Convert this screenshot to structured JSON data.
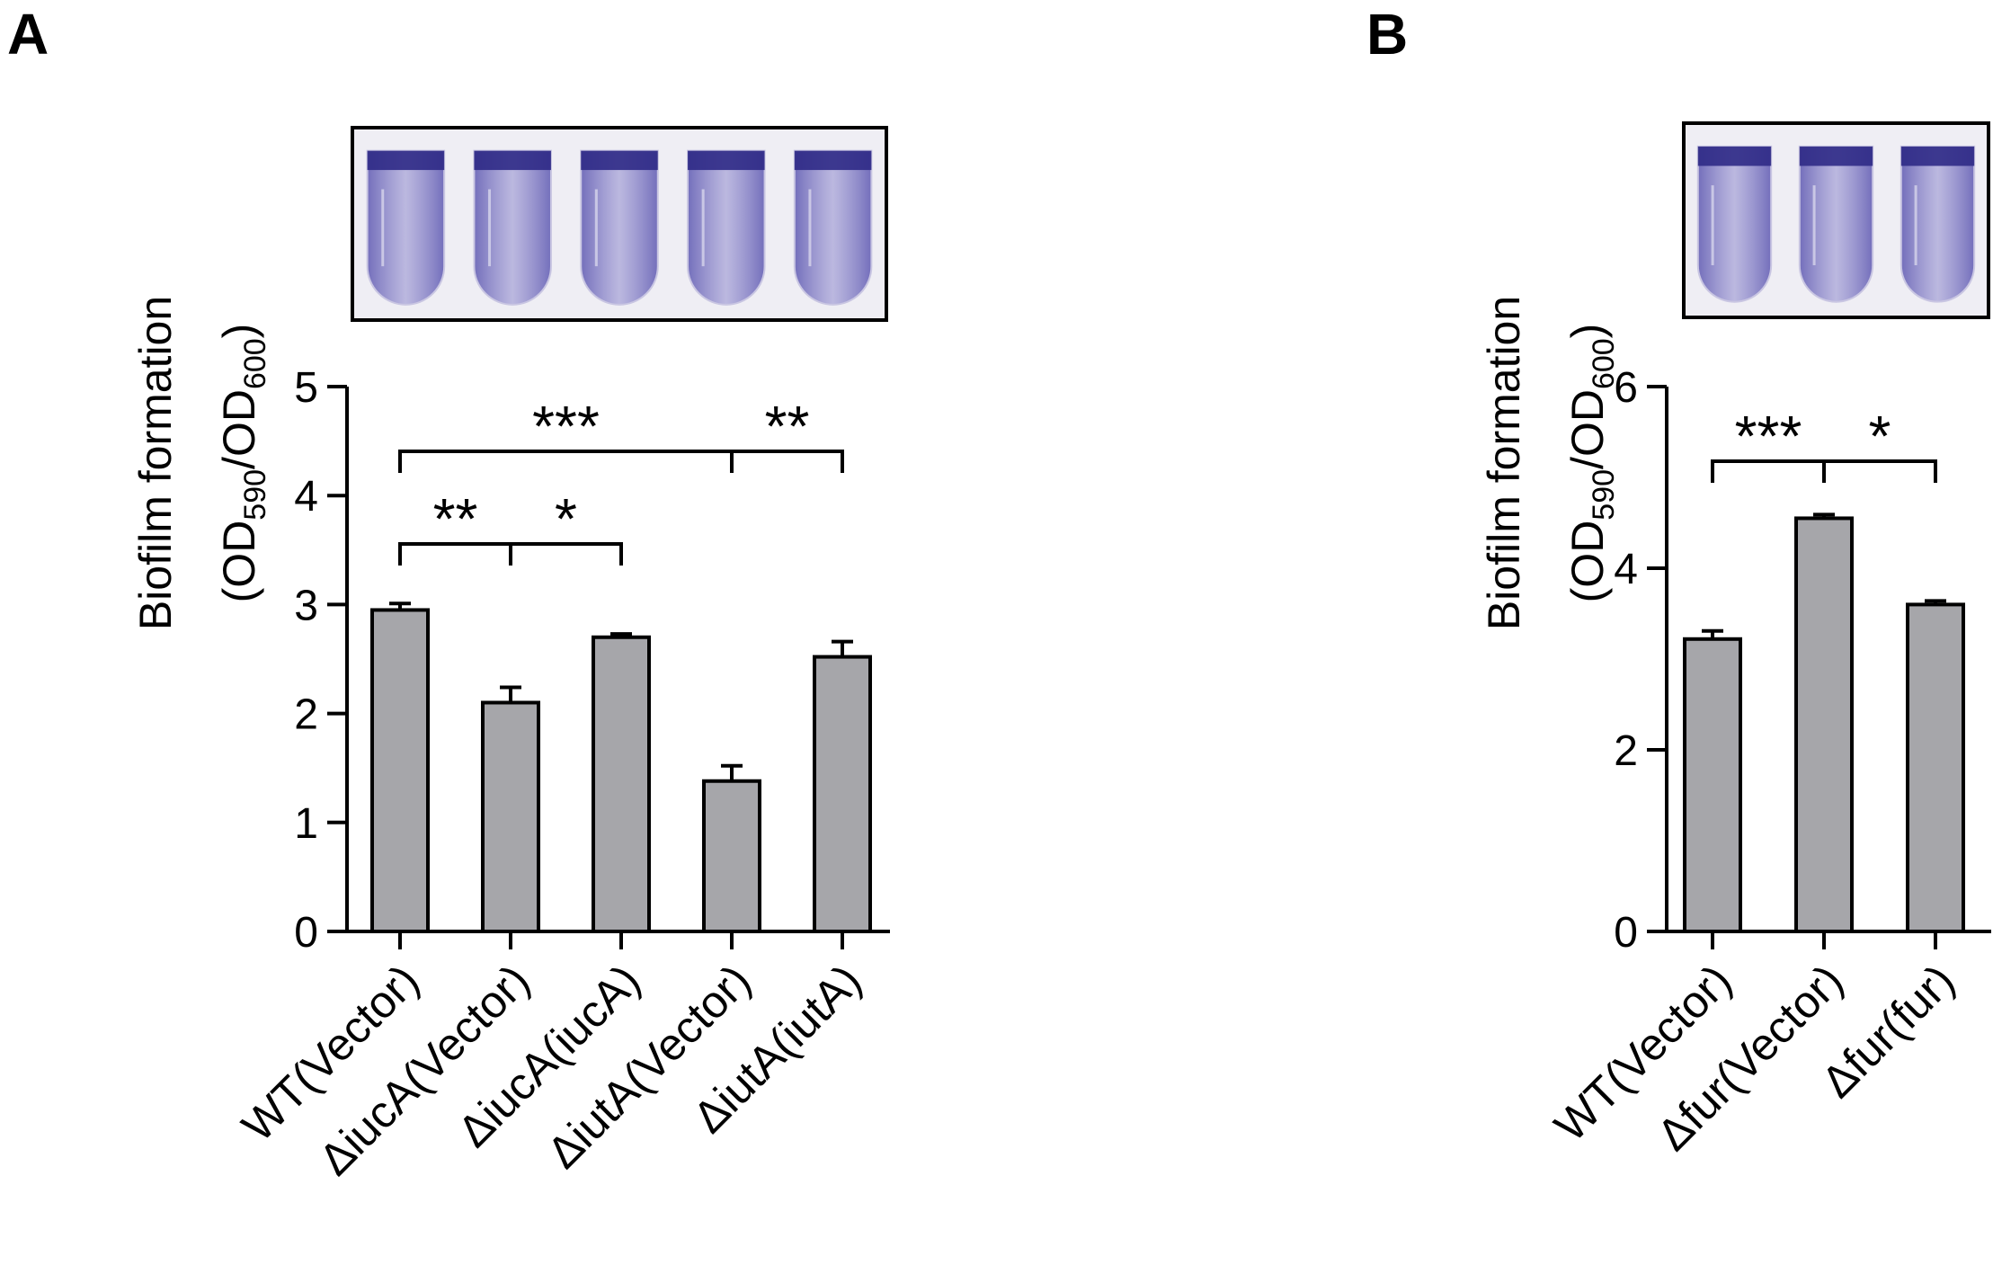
{
  "panels": [
    {
      "letter": "A",
      "photo_tubes": 5
    },
    {
      "letter": "B",
      "photo_tubes": 3
    }
  ],
  "colors": {
    "bar_fill": "#a6a6aa",
    "axis": "#000000",
    "tube_stain": "#5a52b4",
    "tube_band": "#2f2a86",
    "photo_bg": "#efeef4"
  },
  "chart_data": [
    {
      "type": "bar",
      "panel": "A",
      "ylabel_line1": "Biofilm formation",
      "ylabel_line2": {
        "a": "(OD",
        "sub1": "590",
        "b": "/OD",
        "sub2": "600",
        "c": ")"
      },
      "ylim": [
        0,
        5
      ],
      "yticks": [
        "0",
        "1",
        "2",
        "3",
        "4",
        "5"
      ],
      "categories": [
        "WT(Vector)",
        "ΔiucA(Vector)",
        "ΔiucA(iucA)",
        "ΔiutA(Vector)",
        "ΔiutA(iutA)"
      ],
      "values": [
        2.95,
        2.1,
        2.7,
        1.38,
        2.52
      ],
      "errors": [
        0.06,
        0.14,
        0.03,
        0.14,
        0.14
      ],
      "significance": [
        {
          "from": 0,
          "to": 1,
          "label": "**"
        },
        {
          "from": 1,
          "to": 2,
          "label": "*"
        },
        {
          "from": 0,
          "to": 3,
          "label": "***"
        },
        {
          "from": 3,
          "to": 4,
          "label": "**"
        }
      ]
    },
    {
      "type": "bar",
      "panel": "B",
      "ylabel_line1": "Biofilm formation",
      "ylabel_line2": {
        "a": "(OD",
        "sub1": "590",
        "b": "/OD",
        "sub2": "600",
        "c": ")"
      },
      "ylim": [
        0,
        6
      ],
      "yticks": [
        "0",
        "2",
        "4",
        "6"
      ],
      "categories": [
        "WT(Vector)",
        "Δfur(Vector)",
        "Δfur(fur)"
      ],
      "values": [
        3.22,
        4.55,
        3.6
      ],
      "errors": [
        0.09,
        0.04,
        0.04
      ],
      "significance": [
        {
          "from": 0,
          "to": 1,
          "label": "***"
        },
        {
          "from": 1,
          "to": 2,
          "label": "*"
        }
      ]
    }
  ]
}
